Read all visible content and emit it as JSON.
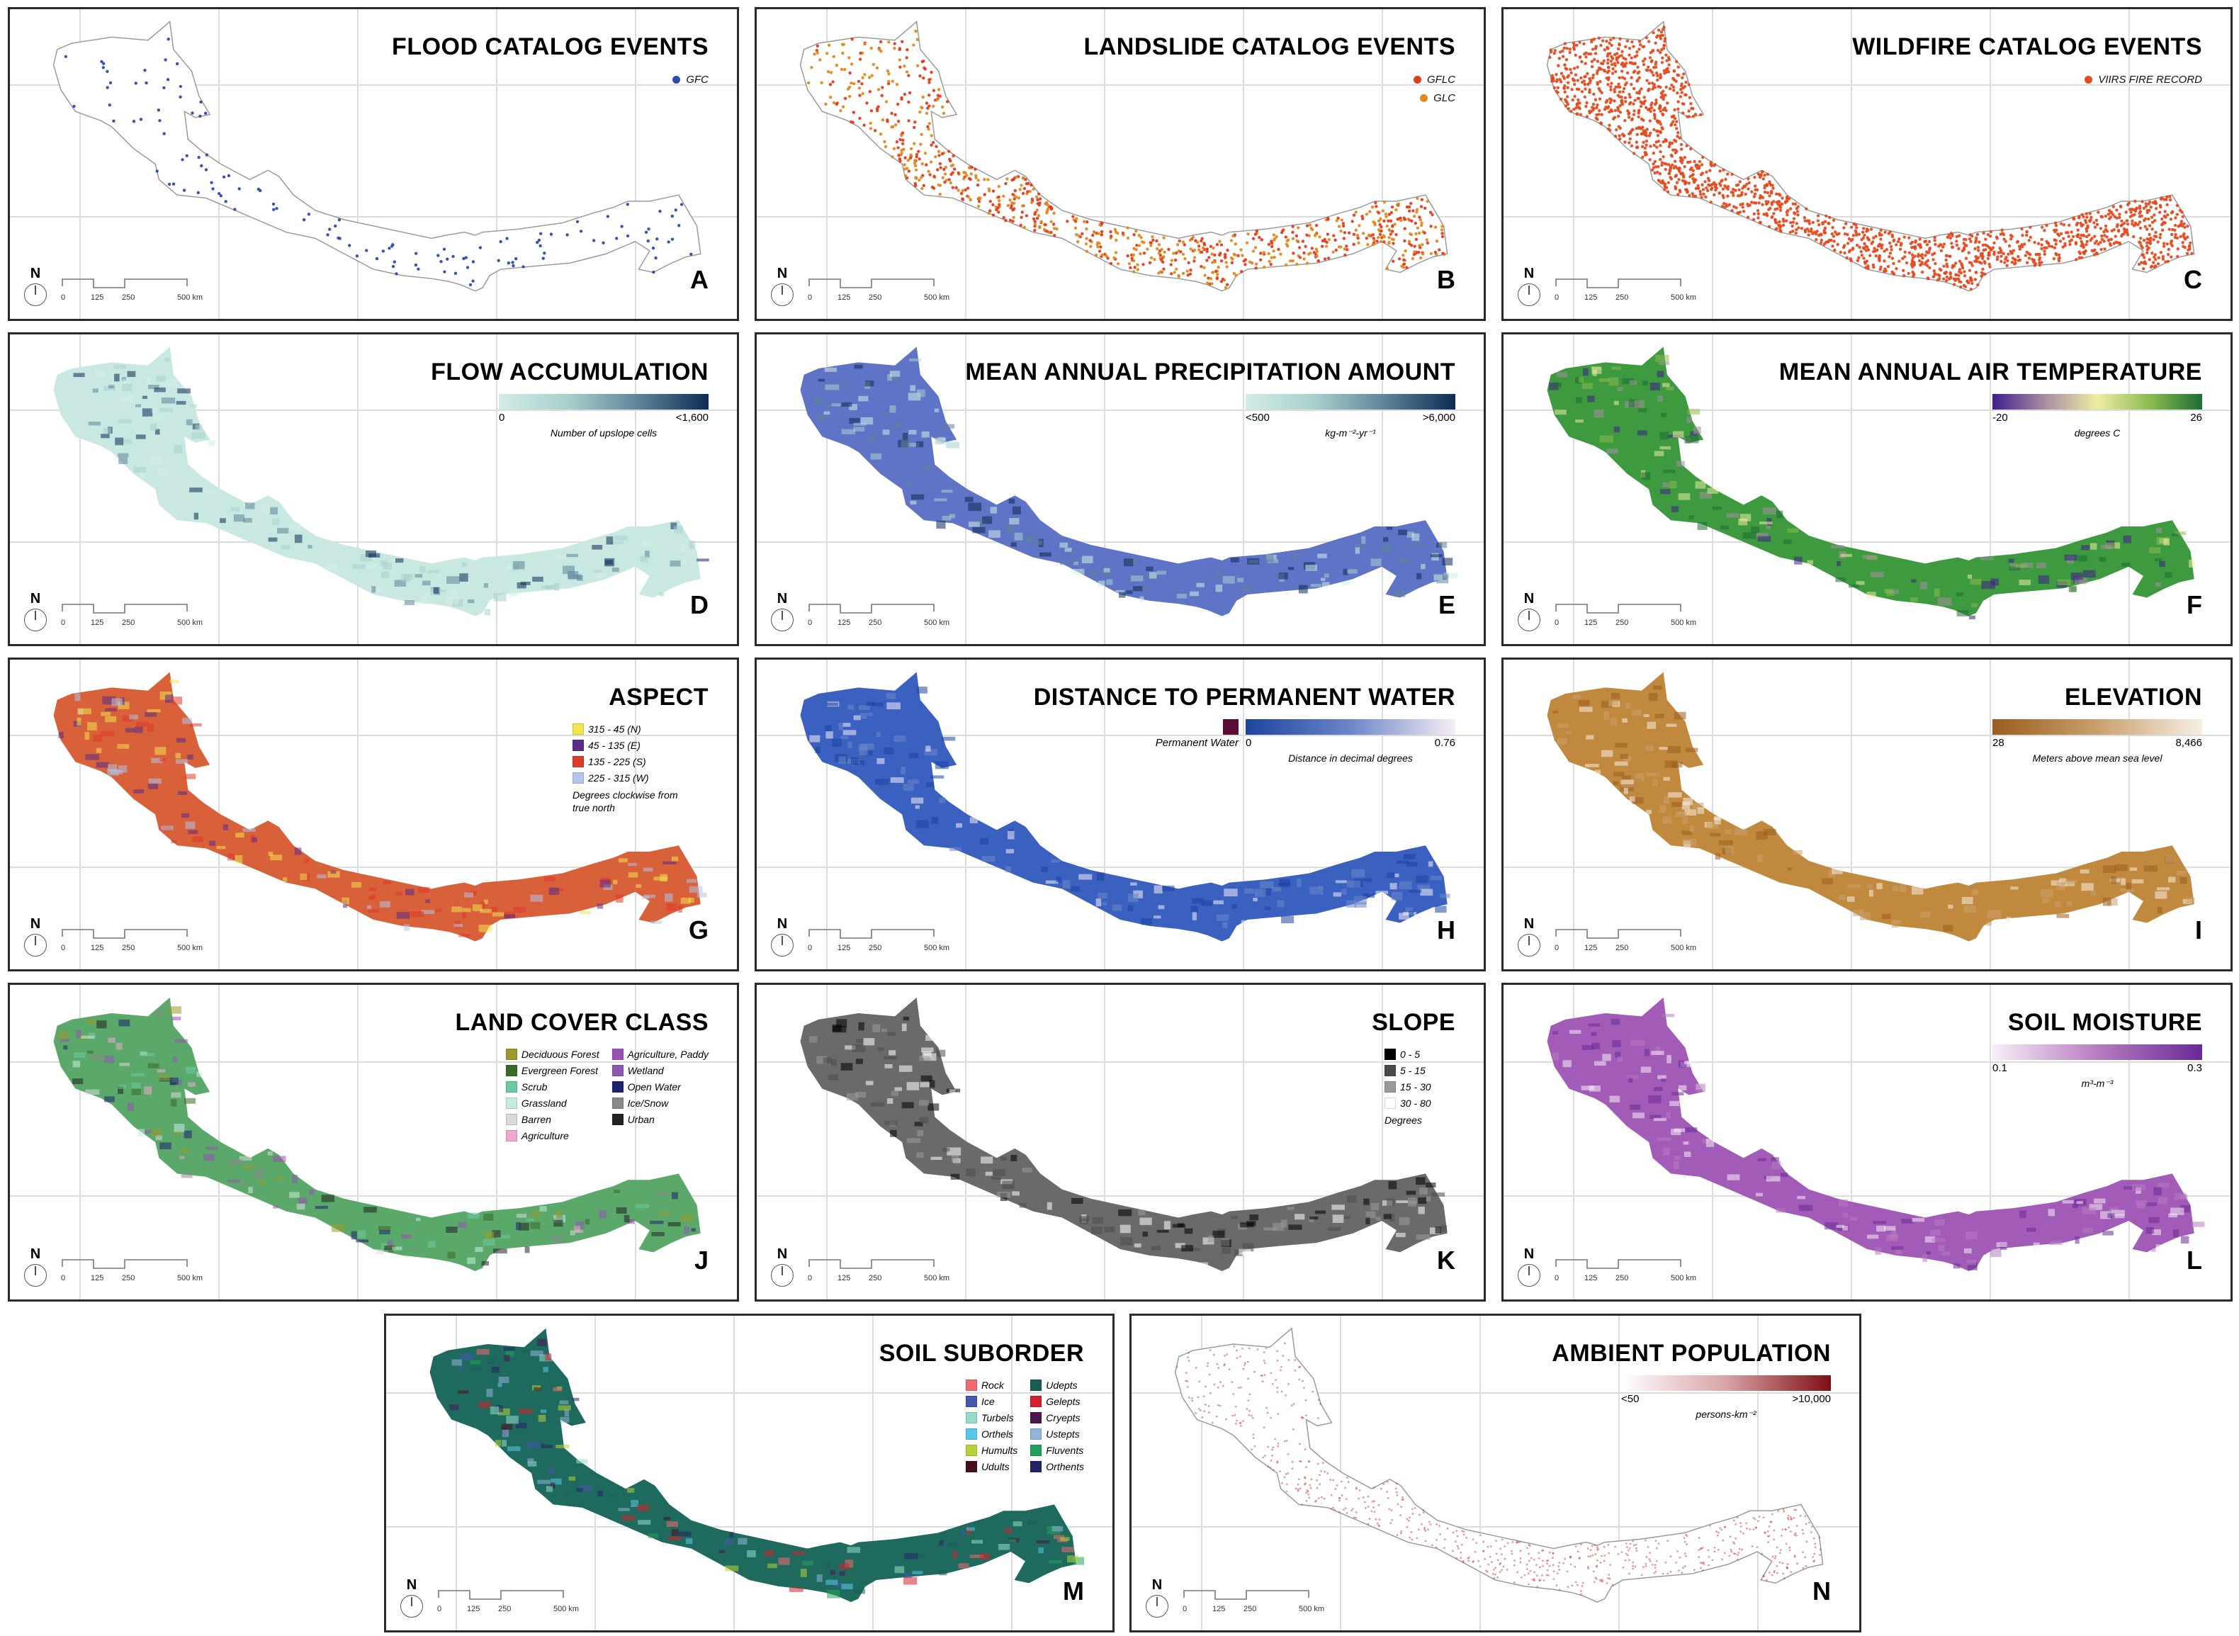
{
  "figure": {
    "scale_bar": {
      "labels": [
        "0",
        "125",
        "250",
        "500 km"
      ]
    },
    "north_label": "N",
    "panels": [
      {
        "id": "A",
        "title": "FLOOD CATALOG EVENTS",
        "letter": "A",
        "fill": "none",
        "legend_type": "points",
        "legend": [
          {
            "label": "GFC",
            "color": "#2a4bb0"
          }
        ],
        "point_color": "#2a4bb0",
        "point_density": "sparse"
      },
      {
        "id": "B",
        "title": "LANDSLIDE CATALOG EVENTS",
        "letter": "B",
        "fill": "none",
        "legend_type": "points",
        "legend": [
          {
            "label": "GFLC",
            "color": "#e63a1e"
          },
          {
            "label": "GLC",
            "color": "#e08a1c"
          }
        ],
        "point_color": "#e6781e",
        "point_density": "dense"
      },
      {
        "id": "C",
        "title": "WILDFIRE CATALOG EVENTS",
        "letter": "C",
        "fill": "none",
        "legend_type": "points",
        "legend": [
          {
            "label": "VIIRS FIRE RECORD",
            "color": "#e64a1f"
          }
        ],
        "point_color": "#e64a1f",
        "point_density": "very-dense"
      },
      {
        "id": "D",
        "title": "FLOW ACCUMULATION",
        "letter": "D",
        "fill": "#c9e8e2",
        "legend_type": "ramp",
        "ramp": {
          "colors": [
            "#d2ece6",
            "#a8cfcc",
            "#5c8499",
            "#0e2c55"
          ],
          "min": "0",
          "max": "<1,600",
          "unit": "Number of upslope cells"
        }
      },
      {
        "id": "E",
        "title": "MEAN ANNUAL PRECIPITATION AMOUNT",
        "letter": "E",
        "fill": "#5f73c7",
        "legend_type": "ramp",
        "ramp": {
          "colors": [
            "#d2ece6",
            "#a8cfcc",
            "#5c8499",
            "#0e2c55"
          ],
          "min": "<500",
          "max": ">6,000",
          "unit": "kg-m⁻²-yr⁻¹"
        }
      },
      {
        "id": "F",
        "title": "MEAN ANNUAL AIR TEMPERATURE",
        "letter": "F",
        "fill": "#3d9a3e",
        "legend_type": "ramp",
        "ramp": {
          "colors": [
            "#3f1f8a",
            "#a88ea3",
            "#eeeda2",
            "#8cbb52",
            "#1f6e35"
          ],
          "min": "-20",
          "max": "26",
          "unit": "degrees C"
        }
      },
      {
        "id": "G",
        "title": "ASPECT",
        "letter": "G",
        "fill": "#d8613a",
        "legend_type": "swatches",
        "swatches": [
          {
            "label": "315 - 45 (N)",
            "color": "#f1e34d"
          },
          {
            "label": "45 - 135 (E)",
            "color": "#5a2d8c"
          },
          {
            "label": "135 - 225 (S)",
            "color": "#e03a2a"
          },
          {
            "label": "225 - 315 (W)",
            "color": "#b3c5ea"
          }
        ],
        "note": "Degrees clockwise from true north"
      },
      {
        "id": "H",
        "title": "DISTANCE TO PERMANENT WATER",
        "letter": "H",
        "fill": "#3a60c0",
        "legend_type": "ramp",
        "extra_swatch": {
          "label": "Permanent Water",
          "color": "#5a0c38"
        },
        "ramp": {
          "colors": [
            "#1d44a0",
            "#6c86c8",
            "#f6eef6"
          ],
          "min": "0",
          "max": "0.76",
          "unit": "Distance in decimal degrees"
        }
      },
      {
        "id": "I",
        "title": "ELEVATION",
        "letter": "I",
        "fill": "#c1893d",
        "legend_type": "ramp",
        "ramp": {
          "colors": [
            "#9a5d1f",
            "#c9a06c",
            "#f6efe4"
          ],
          "min": "28",
          "max": "8,466",
          "unit": "Meters above mean sea level"
        }
      },
      {
        "id": "J",
        "title": "LAND COVER CLASS",
        "letter": "J",
        "fill": "#5aa86a",
        "legend_type": "swatches-2col",
        "swatches": [
          {
            "label": "Deciduous Forest",
            "color": "#9a9a2a"
          },
          {
            "label": "Evergreen Forest",
            "color": "#3a6a28"
          },
          {
            "label": "Scrub",
            "color": "#6ccaa0"
          },
          {
            "label": "Grassland",
            "color": "#c6ece0"
          },
          {
            "label": "Barren",
            "color": "#d9d9d9"
          },
          {
            "label": "Agriculture",
            "color": "#f0a7cf"
          },
          {
            "label": "Agriculture, Paddy",
            "color": "#9a4fb3"
          },
          {
            "label": "Wetland",
            "color": "#8e5aaf"
          },
          {
            "label": "Open Water",
            "color": "#1e2370"
          },
          {
            "label": "Ice/Snow",
            "color": "#8a8a8a"
          },
          {
            "label": "Urban",
            "color": "#222222"
          }
        ],
        "split": 6
      },
      {
        "id": "K",
        "title": "SLOPE",
        "letter": "K",
        "fill": "#6a6a6a",
        "legend_type": "swatches",
        "swatches": [
          {
            "label": "0 - 5",
            "color": "#000000"
          },
          {
            "label": "5 - 15",
            "color": "#4a4a4a"
          },
          {
            "label": "15 - 30",
            "color": "#9a9a9a"
          },
          {
            "label": "30 - 80",
            "color": "#ffffff"
          }
        ],
        "note": "Degrees"
      },
      {
        "id": "L",
        "title": "SOIL MOISTURE",
        "letter": "L",
        "fill": "#a35bb8",
        "legend_type": "ramp",
        "ramp": {
          "colors": [
            "#f7eff7",
            "#b77cc0",
            "#6a2a96"
          ],
          "min": "0.1",
          "max": "0.3",
          "unit": "m³-m⁻³"
        }
      },
      {
        "id": "M",
        "title": "SOIL SUBORDER",
        "letter": "M",
        "fill": "#1f6a5e",
        "legend_type": "swatches-2col",
        "swatches": [
          {
            "label": "Rock",
            "color": "#f06a6e"
          },
          {
            "label": "Ice",
            "color": "#4756b0"
          },
          {
            "label": "Turbels",
            "color": "#94dccb"
          },
          {
            "label": "Orthels",
            "color": "#56c8ea"
          },
          {
            "label": "Humults",
            "color": "#b5d336"
          },
          {
            "label": "Udults",
            "color": "#4a0c18"
          },
          {
            "label": "Udepts",
            "color": "#1b5c55"
          },
          {
            "label": "Gelepts",
            "color": "#d1202e"
          },
          {
            "label": "Cryepts",
            "color": "#4a1550"
          },
          {
            "label": "Ustepts",
            "color": "#94b2d8"
          },
          {
            "label": "Fluvents",
            "color": "#22a05a"
          },
          {
            "label": "Orthents",
            "color": "#222466"
          }
        ],
        "split": 6
      },
      {
        "id": "N",
        "title": "AMBIENT POPULATION",
        "letter": "N",
        "fill": "none",
        "legend_type": "ramp",
        "ramp": {
          "colors": [
            "#ffffff",
            "#d9a3a6",
            "#7e0f14"
          ],
          "min": "<50",
          "max": ">10,000",
          "unit": "persons-km⁻²"
        },
        "point_color": "#c9362e",
        "point_density": "population"
      }
    ]
  }
}
